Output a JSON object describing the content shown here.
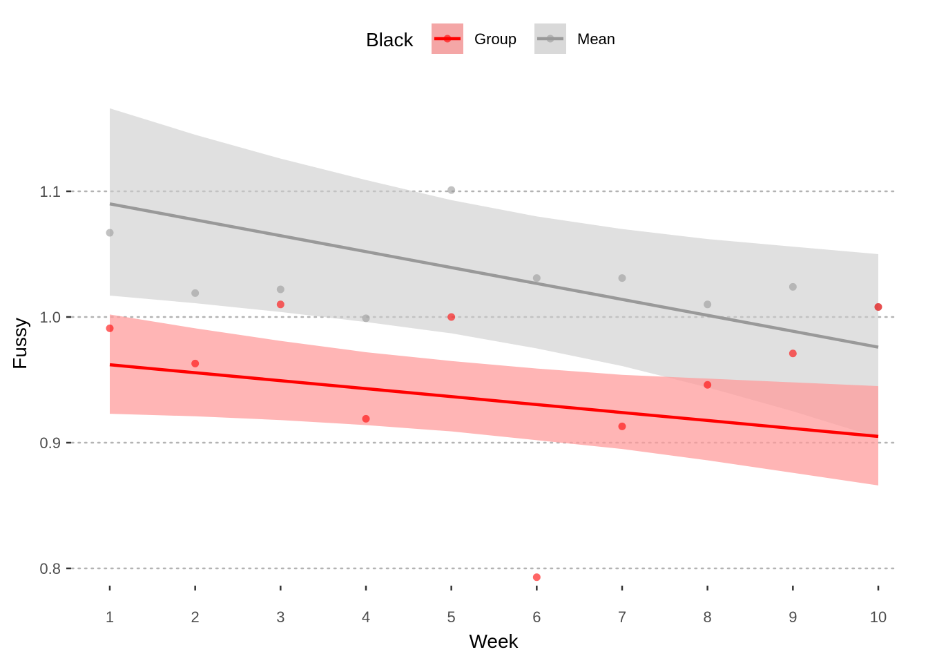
{
  "chart_data": {
    "type": "line",
    "xlabel": "Week",
    "ylabel": "Fussy",
    "xlim": [
      1,
      10
    ],
    "ylim": [
      0.78,
      1.17
    ],
    "x_ticks": [
      "1",
      "2",
      "3",
      "4",
      "5",
      "6",
      "7",
      "8",
      "9",
      "10"
    ],
    "y_ticks": [
      "0.8",
      "0.9",
      "1.0",
      "1.1"
    ],
    "grid": "horizontal-dotted",
    "legend": {
      "title": "Black",
      "placement": "top",
      "entries": [
        "Group",
        "Mean"
      ]
    },
    "series": [
      {
        "name": "Group",
        "color": "#ff0000",
        "band_color": "#ff9999",
        "points": [
          {
            "x": 1,
            "y": 0.991
          },
          {
            "x": 2,
            "y": 0.963
          },
          {
            "x": 3,
            "y": 1.01
          },
          {
            "x": 4,
            "y": 0.919
          },
          {
            "x": 5,
            "y": 1.0
          },
          {
            "x": 6,
            "y": 0.793
          },
          {
            "x": 7,
            "y": 0.913
          },
          {
            "x": 8,
            "y": 0.946
          },
          {
            "x": 9,
            "y": 0.971
          },
          {
            "x": 10,
            "y": 1.008
          }
        ],
        "fit": {
          "x": [
            1,
            10
          ],
          "y": [
            0.962,
            0.905
          ]
        },
        "band": {
          "x": [
            1,
            2,
            3,
            4,
            5,
            6,
            7,
            8,
            9,
            10
          ],
          "lower": [
            0.923,
            0.921,
            0.918,
            0.914,
            0.909,
            0.902,
            0.895,
            0.886,
            0.876,
            0.866
          ],
          "upper": [
            1.002,
            0.991,
            0.981,
            0.972,
            0.965,
            0.959,
            0.954,
            0.951,
            0.948,
            0.945
          ]
        }
      },
      {
        "name": "Mean",
        "color": "#999999",
        "band_color": "#cccccc",
        "points": [
          {
            "x": 1,
            "y": 1.067
          },
          {
            "x": 2,
            "y": 1.019
          },
          {
            "x": 3,
            "y": 1.022
          },
          {
            "x": 4,
            "y": 0.999
          },
          {
            "x": 5,
            "y": 1.101
          },
          {
            "x": 6,
            "y": 1.031
          },
          {
            "x": 7,
            "y": 1.031
          },
          {
            "x": 8,
            "y": 1.01
          },
          {
            "x": 9,
            "y": 1.024
          },
          {
            "x": 10,
            "y": 1.008
          }
        ],
        "fit": {
          "x": [
            1,
            10
          ],
          "y": [
            1.09,
            0.976
          ]
        },
        "band": {
          "x": [
            1,
            2,
            3,
            4,
            5,
            6,
            7,
            8,
            9,
            10
          ],
          "lower": [
            1.017,
            1.011,
            1.004,
            0.996,
            0.987,
            0.975,
            0.961,
            0.944,
            0.925,
            0.904
          ],
          "upper": [
            1.166,
            1.145,
            1.126,
            1.109,
            1.093,
            1.08,
            1.07,
            1.062,
            1.056,
            1.05
          ]
        }
      }
    ]
  }
}
